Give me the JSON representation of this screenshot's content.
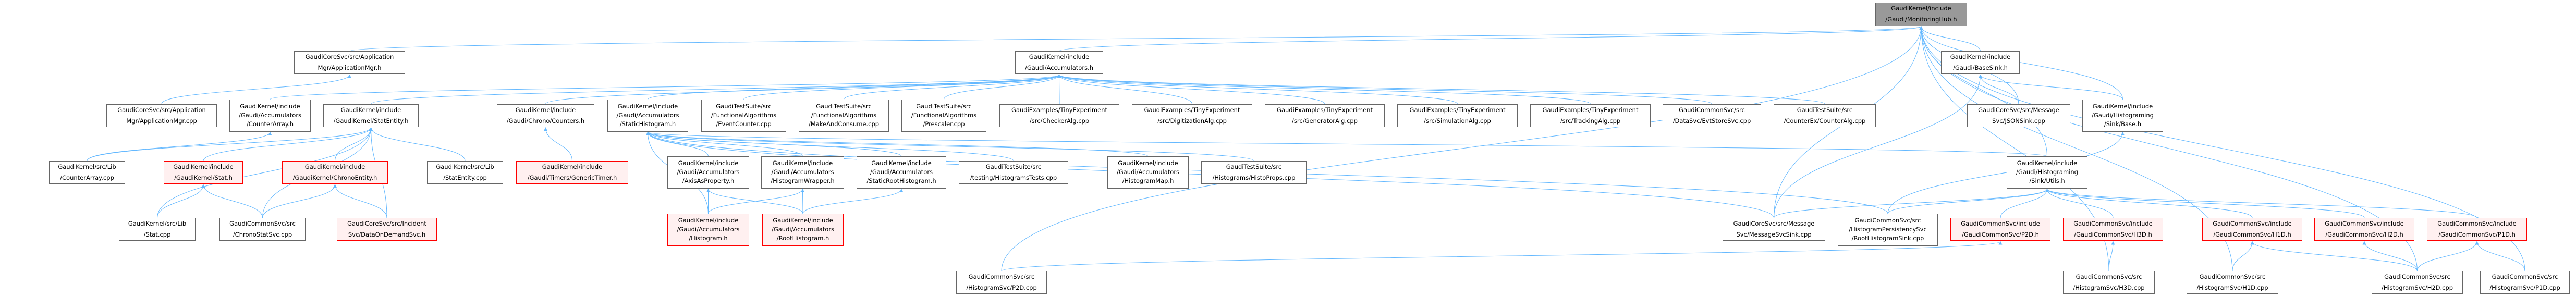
{
  "colors": {
    "edge": "#63b8ff",
    "border": "#666666",
    "red_border": "#ff0000",
    "red_fill": "#fff0f0",
    "root_fill": "#999999"
  },
  "nodes": [
    {
      "id": "hub",
      "style": "root",
      "lines": [
        "GaudiKernel/include",
        "/Gaudi/MonitoringHub.h"
      ]
    },
    {
      "id": "appmgrh",
      "style": "normal",
      "lines": [
        "GaudiCoreSvc/src/Application",
        "Mgr/ApplicationMgr.h"
      ]
    },
    {
      "id": "acc",
      "style": "normal",
      "lines": [
        "GaudiKernel/include",
        "/Gaudi/Accumulators.h"
      ]
    },
    {
      "id": "basesink",
      "style": "normal",
      "lines": [
        "GaudiKernel/include",
        "/Gaudi/BaseSink.h"
      ]
    },
    {
      "id": "appmgrcpp",
      "style": "normal",
      "lines": [
        "GaudiCoreSvc/src/Application",
        "Mgr/ApplicationMgr.cpp"
      ]
    },
    {
      "id": "counterarrayh",
      "style": "normal",
      "lines": [
        "GaudiKernel/include",
        "/Gaudi/Accumulators",
        "/CounterArray.h"
      ]
    },
    {
      "id": "statentityh",
      "style": "normal",
      "lines": [
        "GaudiKernel/include",
        "/GaudiKernel/StatEntity.h"
      ]
    },
    {
      "id": "countersh",
      "style": "normal",
      "lines": [
        "GaudiKernel/include",
        "/Gaudi/Chrono/Counters.h"
      ]
    },
    {
      "id": "statichist",
      "style": "normal",
      "lines": [
        "GaudiKernel/include",
        "/Gaudi/Accumulators",
        "/StaticHistogram.h"
      ]
    },
    {
      "id": "eventcounter",
      "style": "normal",
      "lines": [
        "GaudiTestSuite/src",
        "/FunctionalAlgorithms",
        "/EventCounter.cpp"
      ]
    },
    {
      "id": "makeconsume",
      "style": "normal",
      "lines": [
        "GaudiTestSuite/src",
        "/FunctionalAlgorithms",
        "/MakeAndConsume.cpp"
      ]
    },
    {
      "id": "prescaler",
      "style": "normal",
      "lines": [
        "GaudiTestSuite/src",
        "/FunctionalAlgorithms",
        "/Prescaler.cpp"
      ]
    },
    {
      "id": "checker",
      "style": "normal",
      "lines": [
        "GaudiExamples/TinyExperiment",
        "/src/CheckerAlg.cpp"
      ]
    },
    {
      "id": "digit",
      "style": "normal",
      "lines": [
        "GaudiExamples/TinyExperiment",
        "/src/DigitizationAlg.cpp"
      ]
    },
    {
      "id": "generator",
      "style": "normal",
      "lines": [
        "GaudiExamples/TinyExperiment",
        "/src/GeneratorAlg.cpp"
      ]
    },
    {
      "id": "simulation",
      "style": "normal",
      "lines": [
        "GaudiExamples/TinyExperiment",
        "/src/SimulationAlg.cpp"
      ]
    },
    {
      "id": "tracking",
      "style": "normal",
      "lines": [
        "GaudiExamples/TinyExperiment",
        "/src/TrackingAlg.cpp"
      ]
    },
    {
      "id": "evtstore",
      "style": "normal",
      "lines": [
        "GaudiCommonSvc/src",
        "/DataSvc/EvtStoreSvc.cpp"
      ]
    },
    {
      "id": "counteralg",
      "style": "normal",
      "lines": [
        "GaudiTestSuite/src",
        "/CounterEx/CounterAlg.cpp"
      ]
    },
    {
      "id": "jsonsink",
      "style": "normal",
      "lines": [
        "GaudiCoreSvc/src/Message",
        "Svc/JSONSink.cpp"
      ]
    },
    {
      "id": "sinkbase",
      "style": "normal",
      "lines": [
        "GaudiKernel/include",
        "/Gaudi/Histograming",
        "/Sink/Base.h"
      ]
    },
    {
      "id": "counterarraycpp",
      "style": "normal",
      "lines": [
        "GaudiKernel/src/Lib",
        "/CounterArray.cpp"
      ]
    },
    {
      "id": "stath",
      "style": "red",
      "lines": [
        "GaudiKernel/include",
        "/GaudiKernel/Stat.h"
      ]
    },
    {
      "id": "chronoentity",
      "style": "red",
      "lines": [
        "GaudiKernel/include",
        "/GaudiKernel/ChronoEntity.h"
      ]
    },
    {
      "id": "statentitycpp",
      "style": "normal",
      "lines": [
        "GaudiKernel/src/Lib",
        "/StatEntity.cpp"
      ]
    },
    {
      "id": "generictimer",
      "style": "red",
      "lines": [
        "GaudiKernel/include",
        "/Gaudi/Timers/GenericTimer.h"
      ]
    },
    {
      "id": "axisprop",
      "style": "normal",
      "lines": [
        "GaudiKernel/include",
        "/Gaudi/Accumulators",
        "/AxisAsProperty.h"
      ]
    },
    {
      "id": "histwrapper",
      "style": "normal",
      "lines": [
        "GaudiKernel/include",
        "/Gaudi/Accumulators",
        "/HistogramWrapper.h"
      ]
    },
    {
      "id": "staticroot",
      "style": "normal",
      "lines": [
        "GaudiKernel/include",
        "/Gaudi/Accumulators",
        "/StaticRootHistogram.h"
      ]
    },
    {
      "id": "histtests",
      "style": "normal",
      "lines": [
        "GaudiTestSuite/src",
        "/testing/HistogramsTests.cpp"
      ]
    },
    {
      "id": "histmap",
      "style": "normal",
      "lines": [
        "GaudiKernel/include",
        "/Gaudi/Accumulators",
        "/HistogramMap.h"
      ]
    },
    {
      "id": "histoprops",
      "style": "normal",
      "lines": [
        "GaudiTestSuite/src",
        "/Histograms/HistoProps.cpp"
      ]
    },
    {
      "id": "sinkutils",
      "style": "normal",
      "lines": [
        "GaudiKernel/include",
        "/Gaudi/Histograming",
        "/Sink/Utils.h"
      ]
    },
    {
      "id": "statcpp",
      "style": "normal",
      "lines": [
        "GaudiKernel/src/Lib",
        "/Stat.cpp"
      ]
    },
    {
      "id": "chronostat",
      "style": "normal",
      "lines": [
        "GaudiCommonSvc/src",
        "/ChronoStatSvc.cpp"
      ]
    },
    {
      "id": "dataondemand",
      "style": "red",
      "lines": [
        "GaudiCoreSvc/src/Incident",
        "Svc/DataOnDemandSvc.h"
      ]
    },
    {
      "id": "histogramh",
      "style": "red",
      "lines": [
        "GaudiKernel/include",
        "/Gaudi/Accumulators",
        "/Histogram.h"
      ]
    },
    {
      "id": "roothisth",
      "style": "red",
      "lines": [
        "GaudiKernel/include",
        "/Gaudi/Accumulators",
        "/RootHistogram.h"
      ]
    },
    {
      "id": "msgsink",
      "style": "normal",
      "lines": [
        "GaudiCoreSvc/src/Message",
        "Svc/MessageSvcSink.cpp"
      ]
    },
    {
      "id": "rootsink",
      "style": "normal",
      "lines": [
        "GaudiCommonSvc/src",
        "/HistogramPersistencySvc",
        "/RootHistogramSink.cpp"
      ]
    },
    {
      "id": "p2dh",
      "style": "red",
      "lines": [
        "GaudiCommonSvc/include",
        "/GaudiCommonSvc/P2D.h"
      ]
    },
    {
      "id": "h3dh",
      "style": "red",
      "lines": [
        "GaudiCommonSvc/include",
        "/GaudiCommonSvc/H3D.h"
      ]
    },
    {
      "id": "h1dh",
      "style": "red",
      "lines": [
        "GaudiCommonSvc/include",
        "/GaudiCommonSvc/H1D.h"
      ]
    },
    {
      "id": "h2dh",
      "style": "red",
      "lines": [
        "GaudiCommonSvc/include",
        "/GaudiCommonSvc/H2D.h"
      ]
    },
    {
      "id": "p1dh",
      "style": "red",
      "lines": [
        "GaudiCommonSvc/include",
        "/GaudiCommonSvc/P1D.h"
      ]
    },
    {
      "id": "p2dcpp",
      "style": "normal",
      "lines": [
        "GaudiCommonSvc/src",
        "/HistogramSvc/P2D.cpp"
      ]
    },
    {
      "id": "h3dcpp",
      "style": "normal",
      "lines": [
        "GaudiCommonSvc/src",
        "/HistogramSvc/H3D.cpp"
      ]
    },
    {
      "id": "h1dcpp",
      "style": "normal",
      "lines": [
        "GaudiCommonSvc/src",
        "/HistogramSvc/H1D.cpp"
      ]
    },
    {
      "id": "h2dcpp",
      "style": "normal",
      "lines": [
        "GaudiCommonSvc/src",
        "/HistogramSvc/H2D.cpp"
      ]
    },
    {
      "id": "p1dcpp",
      "style": "normal",
      "lines": [
        "GaudiCommonSvc/src",
        "/HistogramSvc/P1D.cpp"
      ]
    }
  ],
  "edges": [
    [
      "appmgrh",
      "hub"
    ],
    [
      "acc",
      "hub"
    ],
    [
      "basesink",
      "hub"
    ],
    [
      "jsonsink",
      "hub"
    ],
    [
      "sinkbase",
      "hub"
    ],
    [
      "sinkutils",
      "hub"
    ],
    [
      "msgsink",
      "hub"
    ],
    [
      "p2dcpp",
      "hub"
    ],
    [
      "h3dcpp",
      "hub"
    ],
    [
      "h1dcpp",
      "hub"
    ],
    [
      "h2dcpp",
      "hub"
    ],
    [
      "p1dcpp",
      "hub"
    ],
    [
      "appmgrcpp",
      "appmgrh"
    ],
    [
      "counterarrayh",
      "acc"
    ],
    [
      "statentityh",
      "acc"
    ],
    [
      "countersh",
      "acc"
    ],
    [
      "statichist",
      "acc"
    ],
    [
      "eventcounter",
      "acc"
    ],
    [
      "makeconsume",
      "acc"
    ],
    [
      "prescaler",
      "acc"
    ],
    [
      "checker",
      "acc"
    ],
    [
      "digit",
      "acc"
    ],
    [
      "generator",
      "acc"
    ],
    [
      "simulation",
      "acc"
    ],
    [
      "tracking",
      "acc"
    ],
    [
      "evtstore",
      "acc"
    ],
    [
      "counteralg",
      "acc"
    ],
    [
      "counterarraycpp",
      "counterarrayh"
    ],
    [
      "counterarraycpp",
      "statentityh"
    ],
    [
      "stath",
      "statentityh"
    ],
    [
      "chronoentity",
      "statentityh"
    ],
    [
      "statcpp",
      "statentityh"
    ],
    [
      "chronostat",
      "statentityh"
    ],
    [
      "dataondemand",
      "statentityh"
    ],
    [
      "statentitycpp",
      "statentityh"
    ],
    [
      "statcpp",
      "stath"
    ],
    [
      "chronostat",
      "stath"
    ],
    [
      "chronostat",
      "chronoentity"
    ],
    [
      "dataondemand",
      "chronoentity"
    ],
    [
      "generictimer",
      "countersh"
    ],
    [
      "histogramh",
      "statichist"
    ],
    [
      "axisprop",
      "statichist"
    ],
    [
      "histwrapper",
      "statichist"
    ],
    [
      "staticroot",
      "statichist"
    ],
    [
      "histtests",
      "statichist"
    ],
    [
      "histmap",
      "statichist"
    ],
    [
      "histoprops",
      "statichist"
    ],
    [
      "msgsink",
      "statichist"
    ],
    [
      "rootsink",
      "statichist"
    ],
    [
      "sinkutils",
      "statichist"
    ],
    [
      "histogramh",
      "axisprop"
    ],
    [
      "roothisth",
      "axisprop"
    ],
    [
      "histogramh",
      "histwrapper"
    ],
    [
      "roothisth",
      "histwrapper"
    ],
    [
      "roothisth",
      "staticroot"
    ],
    [
      "jsonsink",
      "basesink"
    ],
    [
      "sinkbase",
      "basesink"
    ],
    [
      "msgsink",
      "basesink"
    ],
    [
      "rootsink",
      "sinkbase"
    ],
    [
      "msgsink",
      "sinkutils"
    ],
    [
      "rootsink",
      "sinkutils"
    ],
    [
      "p2dh",
      "sinkutils"
    ],
    [
      "h3dh",
      "sinkutils"
    ],
    [
      "h1dh",
      "sinkutils"
    ],
    [
      "h2dh",
      "sinkutils"
    ],
    [
      "p1dh",
      "sinkutils"
    ],
    [
      "h3dcpp",
      "h3dh"
    ],
    [
      "p2dcpp",
      "p2dh"
    ],
    [
      "h1dcpp",
      "h1dh"
    ],
    [
      "h2dcpp",
      "h1dh"
    ],
    [
      "h2dcpp",
      "h2dh"
    ],
    [
      "h2dcpp",
      "p1dh"
    ],
    [
      "p1dcpp",
      "p1dh"
    ]
  ]
}
